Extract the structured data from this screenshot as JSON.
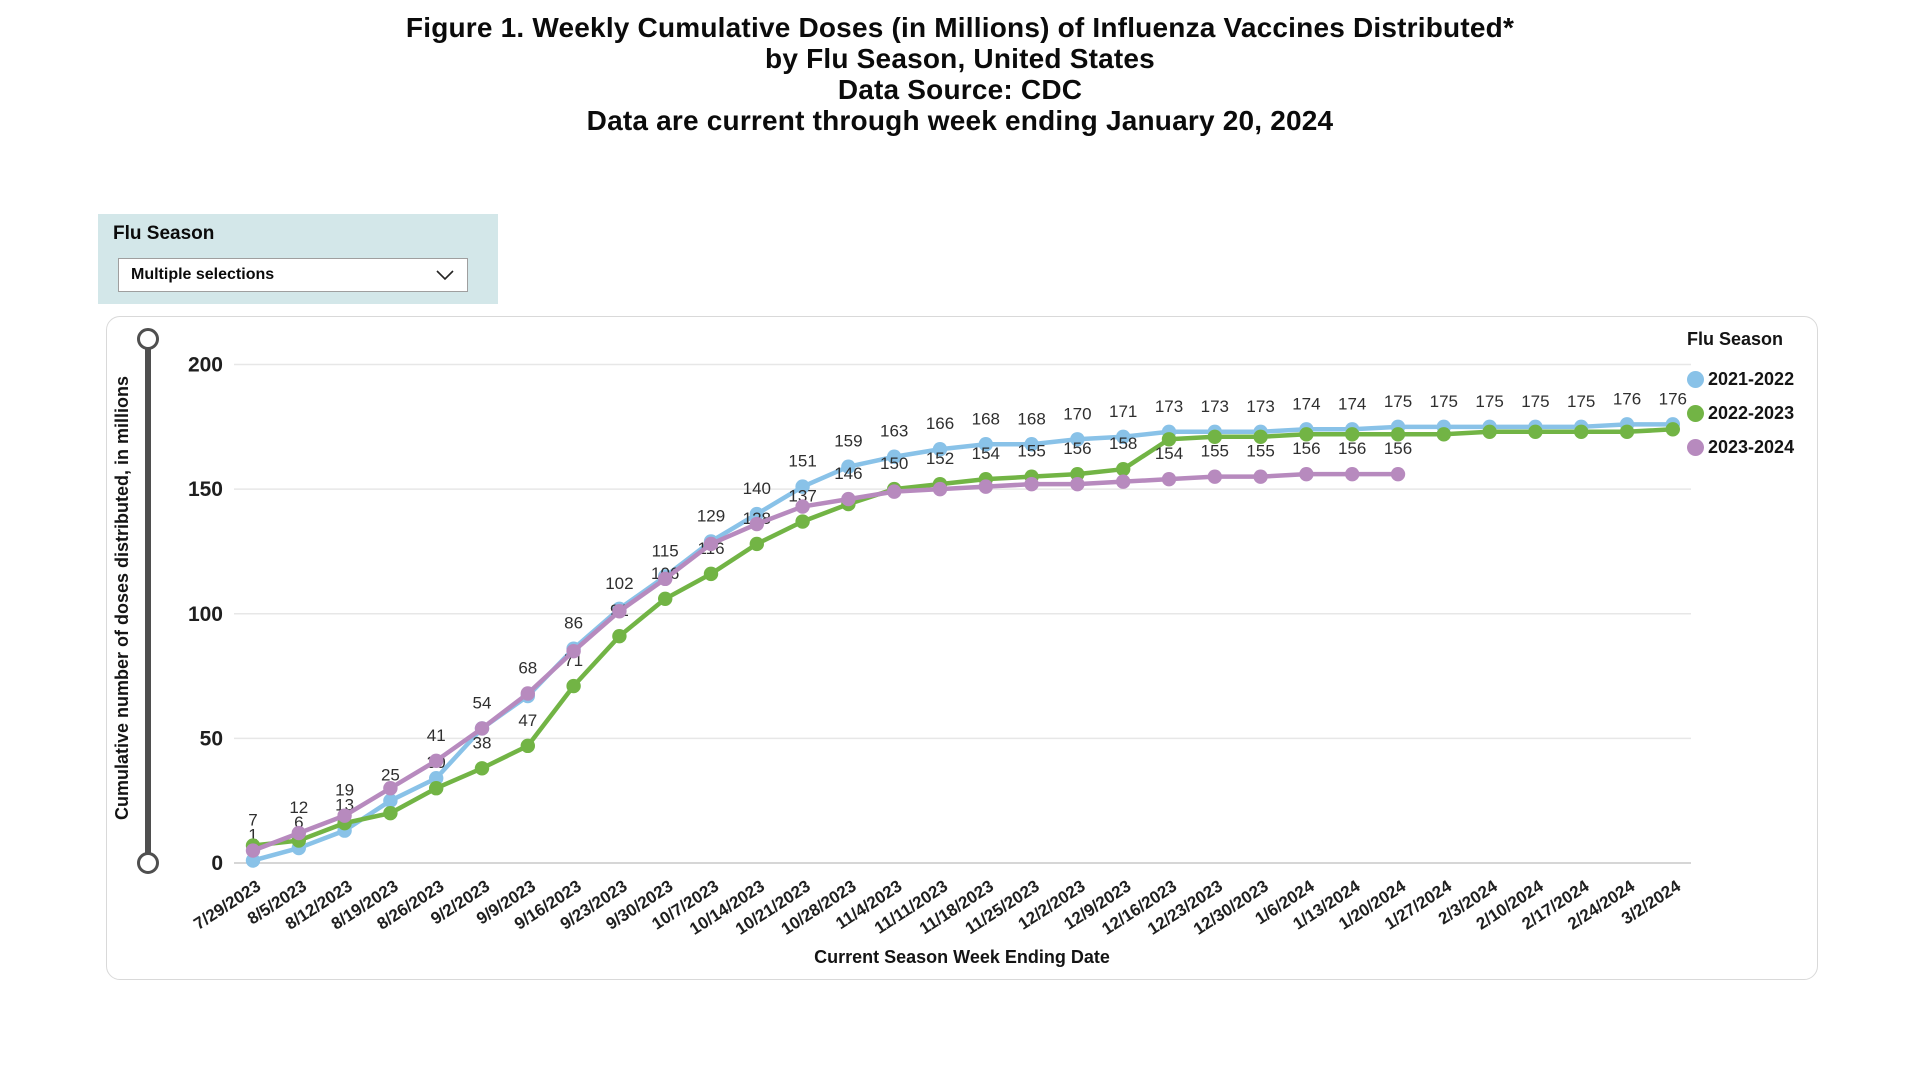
{
  "title": {
    "line1": "Figure 1. Weekly Cumulative Doses (in Millions) of Influenza Vaccines Distributed*",
    "line2": "by Flu Season, United States",
    "line3": "Data Source: CDC",
    "line4": "Data are current through week ending January 20, 2024"
  },
  "slicer": {
    "header": "Flu Season",
    "value": "Multiple selections",
    "chevron_icon": "chevron-down"
  },
  "chart_data": {
    "type": "line",
    "x_axis_title": "Current Season Week Ending Date",
    "y_axis_title": "Cumulative number of doses distributed, in millions",
    "legend_title": "Flu Season",
    "legend_position": "top-right",
    "grid": true,
    "y_ticks": [
      0,
      50,
      100,
      150,
      200
    ],
    "ylim": [
      0,
      210
    ],
    "categories": [
      "7/29/2023",
      "8/5/2023",
      "8/12/2023",
      "8/19/2023",
      "8/26/2023",
      "9/2/2023",
      "9/9/2023",
      "9/16/2023",
      "9/23/2023",
      "9/30/2023",
      "10/7/2023",
      "10/14/2023",
      "10/21/2023",
      "10/28/2023",
      "11/4/2023",
      "11/11/2023",
      "11/18/2023",
      "11/25/2023",
      "12/2/2023",
      "12/9/2023",
      "12/16/2023",
      "12/23/2023",
      "12/30/2023",
      "1/6/2024",
      "1/13/2024",
      "1/20/2024",
      "1/27/2024",
      "2/3/2024",
      "2/10/2024",
      "2/17/2024",
      "2/24/2024",
      "3/2/2024"
    ],
    "series": [
      {
        "name": "2021-2022",
        "color": "#89C2E8",
        "values": [
          1,
          6,
          13,
          25,
          34,
          54,
          67,
          86,
          102,
          115,
          129,
          140,
          151,
          159,
          163,
          166,
          168,
          168,
          170,
          171,
          173,
          173,
          173,
          174,
          174,
          175,
          175,
          175,
          175,
          175,
          176,
          176
        ],
        "labels": [
          "1",
          "6",
          "13",
          "25",
          null,
          null,
          null,
          "86",
          "102",
          "115",
          "129",
          "140",
          "151",
          "159",
          "163",
          "166",
          "168",
          "168",
          "170",
          "171",
          "173",
          "173",
          "173",
          "174",
          "174",
          "175",
          "175",
          "175",
          "175",
          "175",
          "176",
          "176"
        ]
      },
      {
        "name": "2022-2023",
        "color": "#72B445",
        "values": [
          7,
          9,
          16,
          20,
          30,
          38,
          47,
          71,
          91,
          106,
          116,
          128,
          137,
          144,
          150,
          152,
          154,
          155,
          156,
          158,
          170,
          171,
          171,
          172,
          172,
          172,
          172,
          173,
          173,
          173,
          173,
          174
        ],
        "labels": [
          "7",
          null,
          null,
          null,
          "30",
          "38",
          "47",
          "71",
          "91",
          "106",
          "116",
          "128",
          "137",
          null,
          "150",
          "152",
          "154",
          "155",
          "156",
          "158",
          null,
          null,
          null,
          null,
          null,
          null,
          null,
          null,
          null,
          null,
          null,
          null
        ]
      },
      {
        "name": "2023-2024",
        "color": "#B78ABE",
        "values": [
          5,
          12,
          19,
          30,
          41,
          54,
          68,
          85,
          101,
          114,
          128,
          136,
          143,
          146,
          149,
          150,
          151,
          152,
          152,
          153,
          154,
          155,
          155,
          156,
          156,
          156
        ],
        "labels": [
          null,
          "12",
          "19",
          null,
          "41",
          "54",
          "68",
          null,
          null,
          null,
          null,
          null,
          null,
          "146",
          null,
          null,
          null,
          null,
          null,
          null,
          "154",
          "155",
          "155",
          "156",
          "156",
          "156"
        ]
      }
    ]
  }
}
